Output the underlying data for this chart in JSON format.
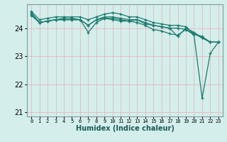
{
  "xlabel": "Humidex (Indice chaleur)",
  "ylabel": "",
  "bg_color": "#d4eeec",
  "grid_color": "#b8d8d5",
  "line_color": "#1a7a6e",
  "xlim": [
    -0.5,
    23.5
  ],
  "ylim": [
    20.85,
    24.85
  ],
  "yticks": [
    21,
    22,
    23,
    24
  ],
  "xticks": [
    0,
    1,
    2,
    3,
    4,
    5,
    6,
    7,
    8,
    9,
    10,
    11,
    12,
    13,
    14,
    15,
    16,
    17,
    18,
    19,
    20,
    21,
    22,
    23
  ],
  "lines": [
    [
      24.6,
      24.3,
      24.35,
      24.4,
      24.4,
      24.4,
      24.4,
      24.3,
      24.4,
      24.5,
      24.55,
      24.5,
      24.4,
      24.4,
      24.3,
      24.2,
      24.15,
      24.1,
      24.1,
      24.05,
      23.8,
      23.7,
      23.5,
      23.5
    ],
    [
      24.5,
      24.2,
      24.25,
      24.3,
      24.35,
      24.35,
      24.3,
      23.85,
      24.2,
      24.35,
      24.35,
      24.3,
      24.25,
      24.3,
      24.15,
      24.1,
      24.05,
      24.0,
      24.0,
      23.95,
      23.8,
      23.65,
      23.5,
      23.5
    ],
    [
      24.55,
      24.2,
      24.25,
      24.3,
      24.3,
      24.3,
      24.3,
      24.1,
      24.3,
      24.35,
      24.3,
      24.25,
      24.25,
      24.2,
      24.1,
      23.95,
      23.9,
      23.8,
      23.75,
      23.95,
      23.75,
      21.5,
      23.1,
      23.5
    ],
    [
      24.45,
      24.2,
      24.25,
      24.3,
      24.3,
      24.3,
      24.3,
      24.1,
      24.3,
      24.4,
      24.4,
      24.35,
      24.3,
      24.3,
      24.2,
      24.1,
      24.05,
      24.0,
      23.7,
      24.0,
      23.85,
      23.65,
      23.5,
      23.5
    ]
  ],
  "marker": "+",
  "spine_color": "#7a9e9a",
  "xlabel_fontsize": 7,
  "ytick_fontsize": 7,
  "xtick_fontsize": 5
}
